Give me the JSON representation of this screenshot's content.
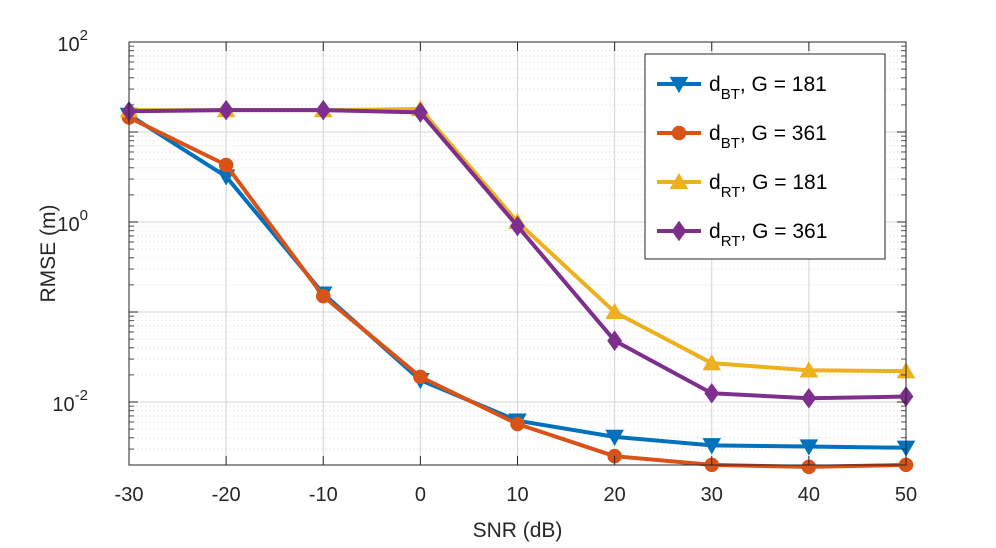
{
  "chart_data": {
    "type": "line",
    "yscale": "log",
    "xlabel": "SNR (dB)",
    "ylabel": "RMSE (m)",
    "xlim": [
      -30,
      50
    ],
    "ylim_log10": [
      -2.7,
      2
    ],
    "grid": true,
    "minor_grid": true,
    "legend_position": "top-right",
    "x": [
      -30,
      -20,
      -10,
      0,
      10,
      20,
      30,
      40,
      50
    ],
    "x_tick_labels": [
      "-30",
      "-20",
      "-10",
      "0",
      "10",
      "20",
      "30",
      "40",
      "50"
    ],
    "y_ticks": [
      {
        "base": "10",
        "exp": "-2",
        "value": 0.01
      },
      {
        "base": "10",
        "exp": "0",
        "value": 1
      },
      {
        "base": "10",
        "exp": "2",
        "value": 100
      }
    ],
    "series": [
      {
        "name": "d_BT, G = 181",
        "legend_main": "d",
        "legend_sub": "BT",
        "legend_rest": ", G =  181",
        "color": "#0072BD",
        "marker": "triangle-down",
        "values": [
          15.5,
          3.2,
          0.16,
          0.0175,
          0.0062,
          0.0041,
          0.0033,
          0.0032,
          0.0031
        ]
      },
      {
        "name": "d_BT, G = 361",
        "legend_main": "d",
        "legend_sub": "BT",
        "legend_rest": ", G =  361",
        "color": "#D95319",
        "marker": "circle",
        "values": [
          14.5,
          4.3,
          0.15,
          0.019,
          0.0057,
          0.0025,
          0.002,
          0.0019,
          0.002
        ]
      },
      {
        "name": "d_RT, G = 181",
        "legend_main": "d",
        "legend_sub": "RT",
        "legend_rest": ", G =  181",
        "color": "#EDB120",
        "marker": "triangle-up",
        "values": [
          17.5,
          17.5,
          17.5,
          18.0,
          1.0,
          0.1,
          0.027,
          0.0225,
          0.022
        ]
      },
      {
        "name": "d_RT, G = 361",
        "legend_main": "d",
        "legend_sub": "RT",
        "legend_rest": ", G =  361",
        "color": "#7E2F8E",
        "marker": "diamond",
        "values": [
          17.0,
          17.5,
          17.5,
          16.5,
          0.9,
          0.048,
          0.0125,
          0.011,
          0.0115
        ]
      }
    ]
  }
}
